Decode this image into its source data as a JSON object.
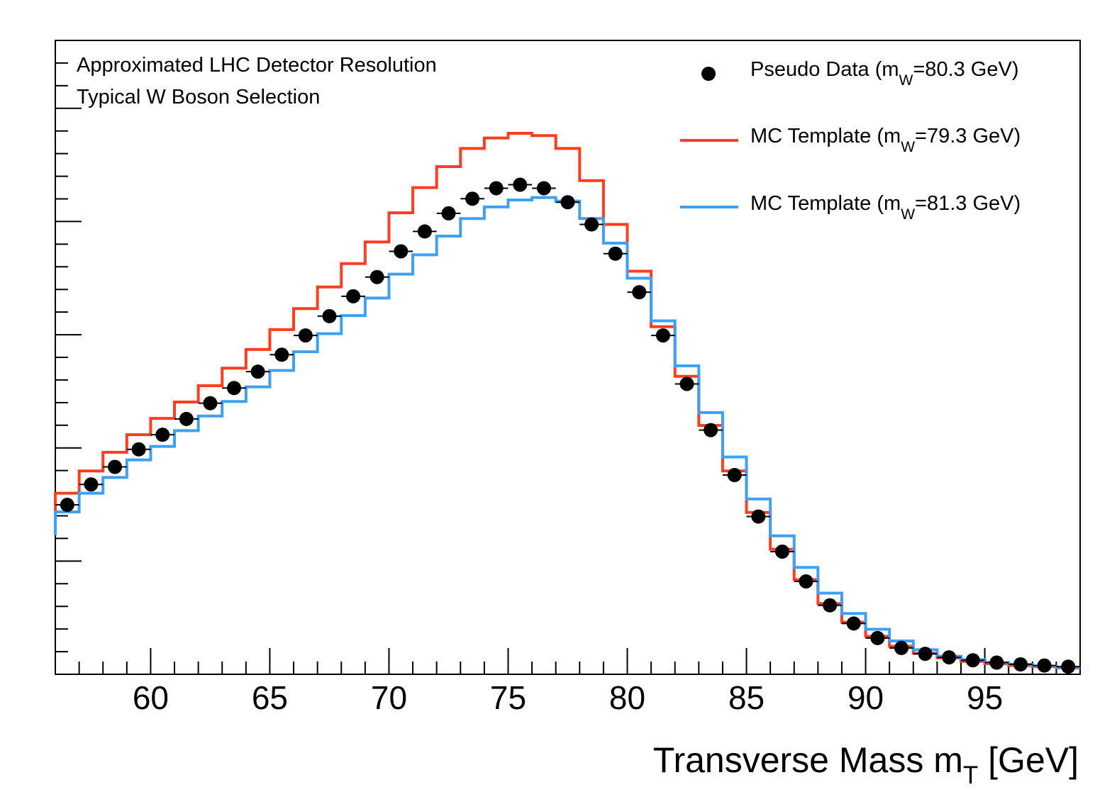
{
  "chart_data": {
    "type": "line",
    "title": "",
    "xlabel": {
      "text": "Transverse Mass m",
      "sub": "T",
      "unit": " [GeV]"
    },
    "ylabel": "",
    "xlim": [
      56,
      99
    ],
    "ylim": [
      0,
      1.085
    ],
    "xticks": [
      60,
      65,
      70,
      75,
      80,
      85,
      90,
      95
    ],
    "xtick_labels": [
      "60",
      "65",
      "70",
      "75",
      "80",
      "85",
      "90",
      "95"
    ],
    "annotations": [
      "Approximated LHC Detector Resolution",
      "Typical W Boson Selection"
    ],
    "bin_edges": [
      56,
      57,
      58,
      59,
      60,
      61,
      62,
      63,
      64,
      65,
      66,
      67,
      68,
      69,
      70,
      71,
      72,
      73,
      74,
      75,
      76,
      77,
      78,
      79,
      80,
      81,
      82,
      83,
      84,
      85,
      86,
      87,
      88,
      89,
      90,
      91,
      92,
      93,
      94,
      95,
      96,
      97,
      98,
      99
    ],
    "series": [
      {
        "name": "Pseudo Data (m_W=80.3 GeV)",
        "legend": {
          "pre": "Pseudo Data (m",
          "sub": "W",
          "post": "=80.3 GeV)"
        },
        "style": "points",
        "color": "#000000",
        "x": [
          56.5,
          57.5,
          58.5,
          59.5,
          60.5,
          61.5,
          62.5,
          63.5,
          64.5,
          65.5,
          66.5,
          67.5,
          68.5,
          69.5,
          70.5,
          71.5,
          72.5,
          73.5,
          74.5,
          75.5,
          76.5,
          77.5,
          78.5,
          79.5,
          80.5,
          81.5,
          82.5,
          83.5,
          84.5,
          85.5,
          86.5,
          87.5,
          88.5,
          89.5,
          90.5,
          91.5,
          92.5,
          93.5,
          94.5,
          95.5,
          96.5,
          97.5,
          98.5
        ],
        "values": [
          0.29,
          0.325,
          0.355,
          0.385,
          0.41,
          0.437,
          0.464,
          0.49,
          0.518,
          0.547,
          0.58,
          0.613,
          0.647,
          0.68,
          0.724,
          0.758,
          0.789,
          0.814,
          0.832,
          0.838,
          0.832,
          0.808,
          0.77,
          0.72,
          0.654,
          0.58,
          0.497,
          0.418,
          0.341,
          0.27,
          0.21,
          0.159,
          0.118,
          0.087,
          0.062,
          0.045,
          0.035,
          0.029,
          0.024,
          0.02,
          0.017,
          0.015,
          0.013
        ]
      },
      {
        "name": "MC Template (m_W=79.3 GeV)",
        "legend": {
          "pre": "MC Template (m",
          "sub": "W",
          "post": "=79.3 GeV)"
        },
        "style": "step",
        "color": "#ff3d1f",
        "values": [
          0.31,
          0.348,
          0.38,
          0.41,
          0.438,
          0.466,
          0.494,
          0.524,
          0.556,
          0.59,
          0.626,
          0.663,
          0.703,
          0.74,
          0.79,
          0.833,
          0.869,
          0.9,
          0.918,
          0.926,
          0.922,
          0.9,
          0.845,
          0.77,
          0.69,
          0.595,
          0.51,
          0.426,
          0.348,
          0.277,
          0.214,
          0.162,
          0.121,
          0.089,
          0.065,
          0.048,
          0.036,
          0.028,
          0.022,
          0.018,
          0.015,
          0.013,
          0.011
        ]
      },
      {
        "name": "MC Template (m_W=81.3 GeV)",
        "legend": {
          "pre": "MC Template (m",
          "sub": "W",
          "post": "=81.3 GeV)"
        },
        "style": "step",
        "color": "#3ea0f2",
        "values": [
          0.278,
          0.31,
          0.337,
          0.367,
          0.39,
          0.417,
          0.442,
          0.467,
          0.492,
          0.52,
          0.552,
          0.583,
          0.614,
          0.644,
          0.685,
          0.718,
          0.75,
          0.78,
          0.8,
          0.812,
          0.816,
          0.81,
          0.78,
          0.738,
          0.678,
          0.605,
          0.528,
          0.448,
          0.372,
          0.3,
          0.237,
          0.183,
          0.139,
          0.104,
          0.077,
          0.057,
          0.042,
          0.031,
          0.025,
          0.02,
          0.017,
          0.014,
          0.012
        ]
      }
    ]
  }
}
